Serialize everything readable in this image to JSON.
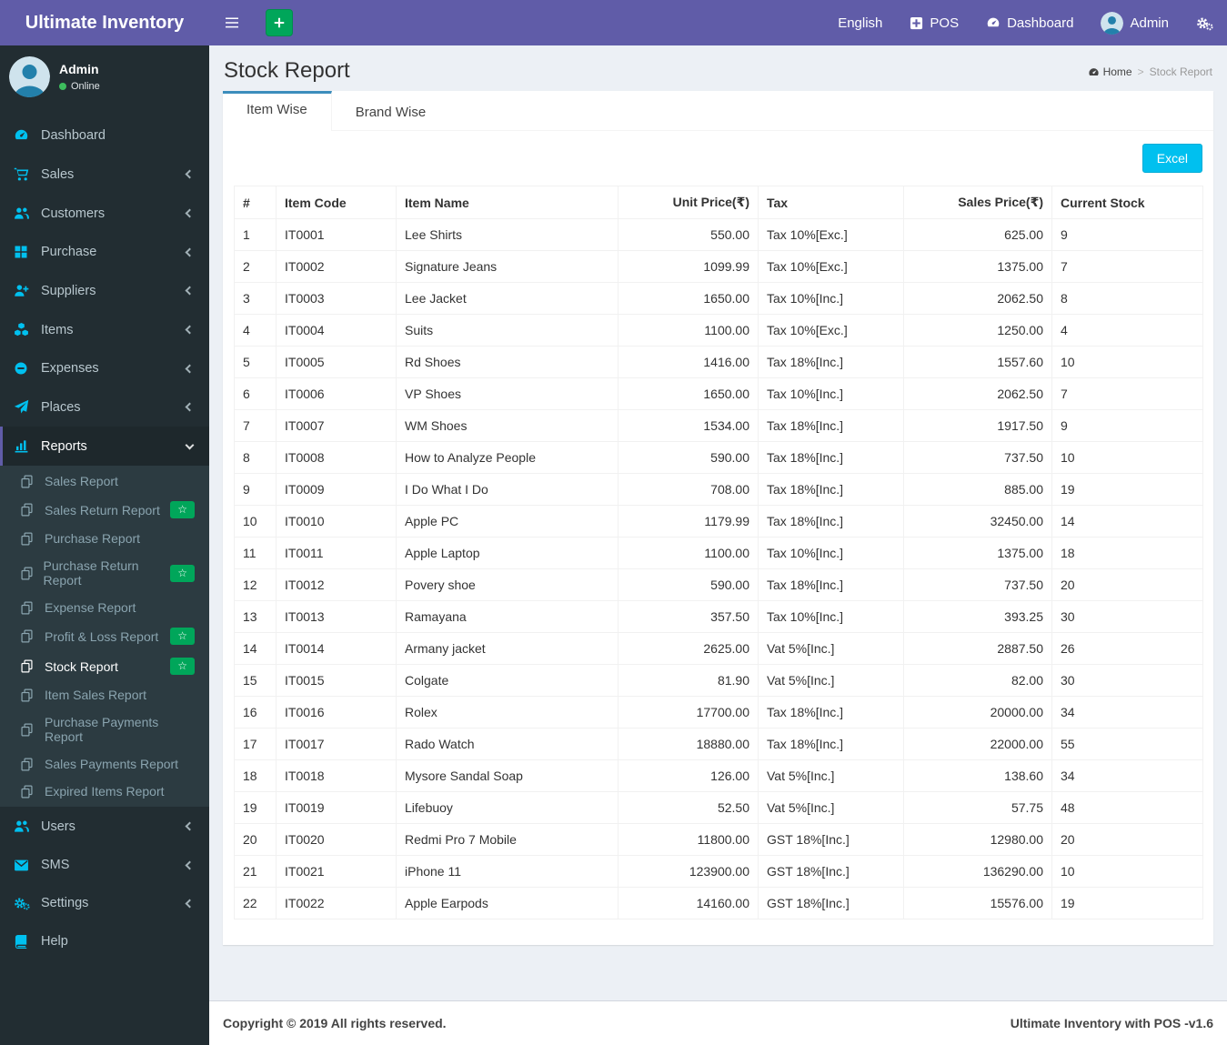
{
  "colors": {
    "primary_purple": "#605ca8",
    "sidebar_bg": "#222d32",
    "submenu_bg": "#2c3b41",
    "icon_accent": "#00c0ef",
    "success_green": "#00a65a",
    "tab_accent": "#3c8dbc",
    "excel_button": "#00c0ef",
    "page_bg": "#ecf0f5"
  },
  "navbar": {
    "brand": "Ultimate Inventory",
    "language": "English",
    "pos": "POS",
    "dashboard": "Dashboard",
    "user": "Admin"
  },
  "user_panel": {
    "name": "Admin",
    "status": "Online"
  },
  "sidebar": {
    "items": [
      {
        "label": "Dashboard",
        "icon": "dashboard-icon"
      },
      {
        "label": "Sales",
        "icon": "cart-icon",
        "chevron": true
      },
      {
        "label": "Customers",
        "icon": "users-icon",
        "chevron": true
      },
      {
        "label": "Purchase",
        "icon": "grid-icon",
        "chevron": true
      },
      {
        "label": "Suppliers",
        "icon": "user-plus-icon",
        "chevron": true
      },
      {
        "label": "Items",
        "icon": "cubes-icon",
        "chevron": true
      },
      {
        "label": "Expenses",
        "icon": "minus-circle-icon",
        "chevron": true
      },
      {
        "label": "Places",
        "icon": "paper-plane-icon",
        "chevron": true
      },
      {
        "label": "Reports",
        "icon": "bar-chart-icon",
        "active": true,
        "expanded": true,
        "submenu": [
          {
            "label": "Sales Report"
          },
          {
            "label": "Sales Return Report",
            "badge": "star"
          },
          {
            "label": "Purchase Report"
          },
          {
            "label": "Purchase Return Report",
            "badge": "star"
          },
          {
            "label": "Expense Report"
          },
          {
            "label": "Profit & Loss Report",
            "badge": "star"
          },
          {
            "label": "Stock Report",
            "badge": "star",
            "active": true
          },
          {
            "label": "Item Sales Report"
          },
          {
            "label": "Purchase Payments Report"
          },
          {
            "label": "Sales Payments Report"
          },
          {
            "label": "Expired Items Report"
          }
        ]
      },
      {
        "label": "Users",
        "icon": "users-icon",
        "chevron": true
      },
      {
        "label": "SMS",
        "icon": "envelope-icon",
        "chevron": true
      },
      {
        "label": "Settings",
        "icon": "gears-icon",
        "chevron": true
      },
      {
        "label": "Help",
        "icon": "book-icon"
      }
    ]
  },
  "page": {
    "title": "Stock Report",
    "breadcrumb": {
      "home": "Home",
      "current": "Stock Report",
      "separator": ">"
    },
    "tabs": [
      {
        "label": "Item Wise",
        "active": true
      },
      {
        "label": "Brand Wise",
        "active": false
      }
    ],
    "excel_button": "Excel"
  },
  "table": {
    "headers": [
      "#",
      "Item Code",
      "Item Name",
      "Unit Price(₹)",
      "Tax",
      "Sales Price(₹)",
      "Current Stock"
    ],
    "rows": [
      [
        "1",
        "IT0001",
        "Lee Shirts",
        "550.00",
        "Tax 10%[Exc.]",
        "625.00",
        "9"
      ],
      [
        "2",
        "IT0002",
        "Signature Jeans",
        "1099.99",
        "Tax 10%[Exc.]",
        "1375.00",
        "7"
      ],
      [
        "3",
        "IT0003",
        "Lee Jacket",
        "1650.00",
        "Tax 10%[Inc.]",
        "2062.50",
        "8"
      ],
      [
        "4",
        "IT0004",
        "Suits",
        "1100.00",
        "Tax 10%[Exc.]",
        "1250.00",
        "4"
      ],
      [
        "5",
        "IT0005",
        "Rd Shoes",
        "1416.00",
        "Tax 18%[Inc.]",
        "1557.60",
        "10"
      ],
      [
        "6",
        "IT0006",
        "VP Shoes",
        "1650.00",
        "Tax 10%[Inc.]",
        "2062.50",
        "7"
      ],
      [
        "7",
        "IT0007",
        "WM Shoes",
        "1534.00",
        "Tax 18%[Inc.]",
        "1917.50",
        "9"
      ],
      [
        "8",
        "IT0008",
        "How to Analyze People",
        "590.00",
        "Tax 18%[Inc.]",
        "737.50",
        "10"
      ],
      [
        "9",
        "IT0009",
        "I Do What I Do",
        "708.00",
        "Tax 18%[Inc.]",
        "885.00",
        "19"
      ],
      [
        "10",
        "IT0010",
        "Apple PC",
        "1179.99",
        "Tax 18%[Inc.]",
        "32450.00",
        "14"
      ],
      [
        "11",
        "IT0011",
        "Apple Laptop",
        "1100.00",
        "Tax 10%[Inc.]",
        "1375.00",
        "18"
      ],
      [
        "12",
        "IT0012",
        "Povery shoe",
        "590.00",
        "Tax 18%[Inc.]",
        "737.50",
        "20"
      ],
      [
        "13",
        "IT0013",
        "Ramayana",
        "357.50",
        "Tax 10%[Inc.]",
        "393.25",
        "30"
      ],
      [
        "14",
        "IT0014",
        "Armany jacket",
        "2625.00",
        "Vat 5%[Inc.]",
        "2887.50",
        "26"
      ],
      [
        "15",
        "IT0015",
        "Colgate",
        "81.90",
        "Vat 5%[Inc.]",
        "82.00",
        "30"
      ],
      [
        "16",
        "IT0016",
        "Rolex",
        "17700.00",
        "Tax 18%[Inc.]",
        "20000.00",
        "34"
      ],
      [
        "17",
        "IT0017",
        "Rado Watch",
        "18880.00",
        "Tax 18%[Inc.]",
        "22000.00",
        "55"
      ],
      [
        "18",
        "IT0018",
        "Mysore Sandal Soap",
        "126.00",
        "Vat 5%[Inc.]",
        "138.60",
        "34"
      ],
      [
        "19",
        "IT0019",
        "Lifebuoy",
        "52.50",
        "Vat 5%[Inc.]",
        "57.75",
        "48"
      ],
      [
        "20",
        "IT0020",
        "Redmi Pro 7 Mobile",
        "11800.00",
        "GST 18%[Inc.]",
        "12980.00",
        "20"
      ],
      [
        "21",
        "IT0021",
        "iPhone 11",
        "123900.00",
        "GST 18%[Inc.]",
        "136290.00",
        "10"
      ],
      [
        "22",
        "IT0022",
        "Apple Earpods",
        "14160.00",
        "GST 18%[Inc.]",
        "15576.00",
        "19"
      ]
    ]
  },
  "footer": {
    "left": "Copyright © 2019 All rights reserved.",
    "right": "Ultimate Inventory with POS -v1.6"
  }
}
